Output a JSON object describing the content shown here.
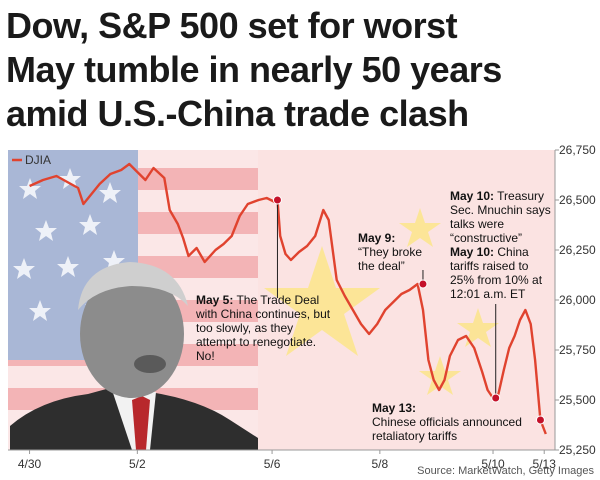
{
  "headline": {
    "line1": "Dow, S&P 500 set for worst",
    "line2": "May tumble in nearly 50 years",
    "line3": "amid U.S.-China trade clash"
  },
  "source": "Source: MarketWatch, Getty Images",
  "colors": {
    "line": "#e0432f",
    "marker": "#c4112a",
    "flag_red": "#f2a2a6",
    "flag_star": "#fbe58a",
    "us_canton": "#a6b6d6",
    "us_stripe_red": "#f3a6aa",
    "background": "#fbe3e2"
  },
  "chart_data": {
    "type": "line",
    "series": [
      {
        "name": "DJIA",
        "points": [
          [
            0,
            26570
          ],
          [
            0.25,
            26600
          ],
          [
            0.5,
            26620
          ],
          [
            0.7,
            26590
          ],
          [
            0.9,
            26560
          ],
          [
            1.0,
            26480
          ],
          [
            1.15,
            26530
          ],
          [
            1.3,
            26580
          ],
          [
            1.5,
            26630
          ],
          [
            1.7,
            26650
          ],
          [
            1.85,
            26680
          ],
          [
            2.0,
            26640
          ],
          [
            2.15,
            26600
          ],
          [
            2.3,
            26660
          ],
          [
            2.5,
            26610
          ],
          [
            2.6,
            26450
          ],
          [
            2.75,
            26380
          ],
          [
            2.85,
            26310
          ],
          [
            2.95,
            26220
          ],
          [
            3.1,
            26260
          ],
          [
            3.25,
            26190
          ],
          [
            3.45,
            26250
          ],
          [
            3.6,
            26280
          ],
          [
            3.75,
            26320
          ],
          [
            3.9,
            26420
          ],
          [
            4.05,
            26480
          ],
          [
            4.25,
            26500
          ],
          [
            4.4,
            26510
          ],
          [
            4.55,
            26490
          ],
          [
            4.6,
            26500
          ],
          [
            4.65,
            26320
          ],
          [
            4.75,
            26230
          ],
          [
            4.85,
            26200
          ],
          [
            5.0,
            26240
          ],
          [
            5.15,
            26270
          ],
          [
            5.3,
            26320
          ],
          [
            5.45,
            26450
          ],
          [
            5.55,
            26400
          ],
          [
            5.7,
            26100
          ],
          [
            5.85,
            26020
          ],
          [
            6.0,
            25950
          ],
          [
            6.15,
            25880
          ],
          [
            6.3,
            25830
          ],
          [
            6.45,
            25880
          ],
          [
            6.6,
            25950
          ],
          [
            6.75,
            25990
          ],
          [
            6.9,
            26030
          ],
          [
            7.05,
            26050
          ],
          [
            7.2,
            26080
          ],
          [
            7.3,
            25950
          ],
          [
            7.4,
            25700
          ],
          [
            7.5,
            25600
          ],
          [
            7.6,
            25550
          ],
          [
            7.7,
            25600
          ],
          [
            7.8,
            25720
          ],
          [
            7.95,
            25800
          ],
          [
            8.1,
            25820
          ],
          [
            8.25,
            25760
          ],
          [
            8.4,
            25640
          ],
          [
            8.5,
            25550
          ],
          [
            8.6,
            25510
          ],
          [
            8.7,
            25530
          ],
          [
            8.8,
            25650
          ],
          [
            8.9,
            25760
          ],
          [
            9.0,
            25820
          ],
          [
            9.1,
            25900
          ],
          [
            9.2,
            25950
          ],
          [
            9.3,
            25880
          ],
          [
            9.38,
            25700
          ],
          [
            9.48,
            25400
          ],
          [
            9.58,
            25330
          ]
        ]
      }
    ],
    "x_ticks": [
      {
        "x": 0,
        "label": "4/30"
      },
      {
        "x": 2,
        "label": "5/2"
      },
      {
        "x": 4.5,
        "label": "5/6"
      },
      {
        "x": 6.5,
        "label": "5/8"
      },
      {
        "x": 8.6,
        "label": "5/10"
      },
      {
        "x": 9.55,
        "label": "5/13"
      }
    ],
    "y_ticks": [
      25250,
      25500,
      25750,
      26000,
      26250,
      26500,
      26750
    ],
    "y_tick_labels": [
      "25,250",
      "25,500",
      "25,750",
      "26,000",
      "26,250",
      "26,500",
      "26,750"
    ],
    "xlim": [
      -0.4,
      9.75
    ],
    "ylim": [
      25250,
      26750
    ],
    "legend_position": "top-left",
    "annotations": [
      {
        "id": "may5",
        "x": 4.6,
        "y": 26500,
        "lines": [
          [
            "May 5:",
            " The Trade Deal"
          ],
          [
            "with China continues, but"
          ],
          [
            "too slowly, as they"
          ],
          [
            "attempt to renegotiate."
          ],
          [
            "No!"
          ]
        ]
      },
      {
        "id": "may9",
        "x": 7.3,
        "y": 26080,
        "lines": [
          [
            "May 9:",
            ""
          ],
          [
            "“They broke"
          ],
          [
            "the deal”"
          ]
        ]
      },
      {
        "id": "may10a",
        "x": 8.65,
        "y": 25510,
        "lines": [
          [
            "May 10:",
            " Treasury"
          ],
          [
            "Sec. Mnuchin says"
          ],
          [
            "talks were"
          ],
          [
            "“constructive”"
          ]
        ]
      },
      {
        "id": "may10b",
        "x": 8.65,
        "y": 25510,
        "lines": [
          [
            "May 10:",
            " China"
          ],
          [
            "tariffs raised to"
          ],
          [
            "25% from 10% at"
          ],
          [
            "12:01 a.m. ET"
          ]
        ]
      },
      {
        "id": "may13",
        "x": 9.48,
        "y": 25400,
        "lines": [
          [
            "May 13:",
            ""
          ],
          [
            "Chinese officials announced"
          ],
          [
            "retaliatory tariffs"
          ]
        ]
      }
    ]
  }
}
